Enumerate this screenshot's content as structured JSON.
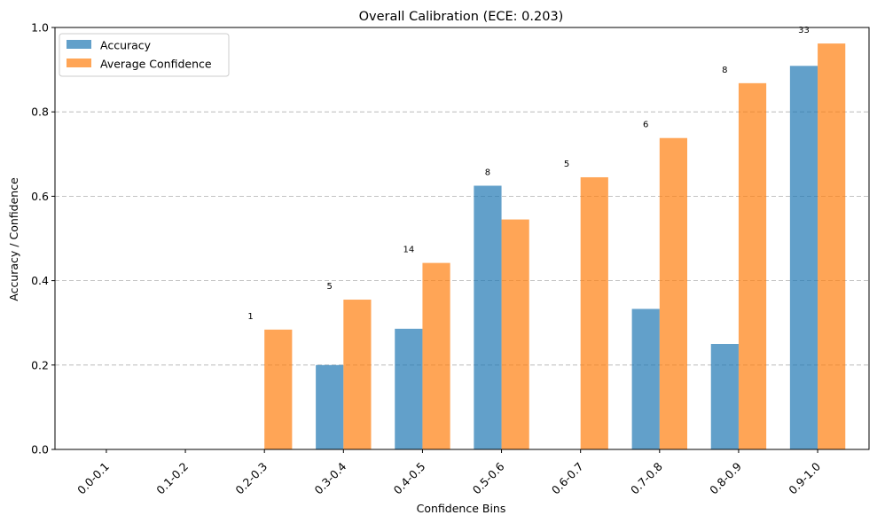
{
  "chart_data": {
    "type": "bar",
    "title": "Overall Calibration  (ECE: 0.203)",
    "xlabel": "Confidence Bins",
    "ylabel": "Accuracy / Confidence",
    "categories": [
      "0.0-0.1",
      "0.1-0.2",
      "0.2-0.3",
      "0.3-0.4",
      "0.4-0.5",
      "0.5-0.6",
      "0.6-0.7",
      "0.7-0.8",
      "0.8-0.9",
      "0.9-1.0"
    ],
    "series": [
      {
        "name": "Accuracy",
        "color": "#1f77b4",
        "values": [
          0,
          0,
          0,
          0.2,
          0.286,
          0.625,
          0,
          0.333,
          0.25,
          0.909
        ]
      },
      {
        "name": "Average Confidence",
        "color": "#ff7f0e",
        "values": [
          0,
          0,
          0.284,
          0.355,
          0.442,
          0.545,
          0.645,
          0.738,
          0.868,
          0.962
        ]
      }
    ],
    "counts": [
      "",
      "",
      "1",
      "5",
      "14",
      "8",
      "5",
      "6",
      "8",
      "33"
    ],
    "ylim": [
      0,
      1.0
    ],
    "yticks": [
      "0.0",
      "0.2",
      "0.4",
      "0.6",
      "0.8",
      "1.0"
    ],
    "grid": "y-dashed",
    "reference_line": 1.0,
    "legend_position": "top-left"
  }
}
